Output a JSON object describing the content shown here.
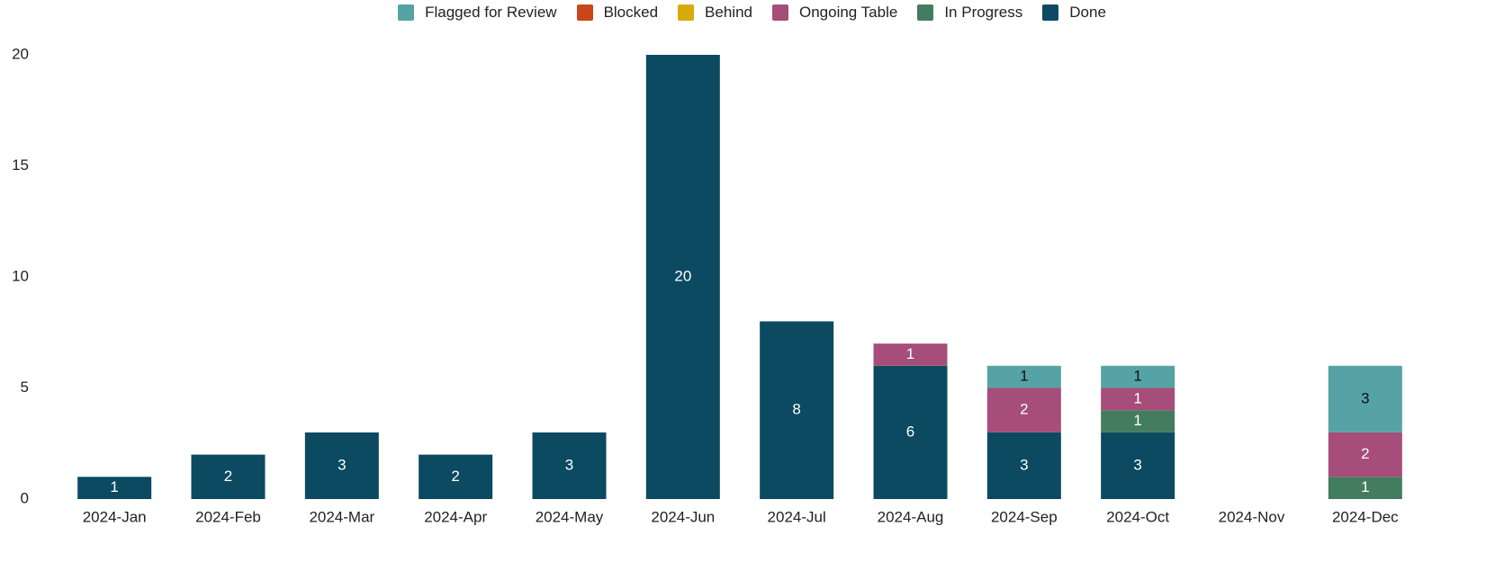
{
  "chart_data": {
    "type": "bar",
    "stacked": true,
    "categories": [
      "2024-Jan",
      "2024-Feb",
      "2024-Mar",
      "2024-Apr",
      "2024-May",
      "2024-Jun",
      "2024-Jul",
      "2024-Aug",
      "2024-Sep",
      "2024-Oct",
      "2024-Nov",
      "2024-Dec"
    ],
    "series": [
      {
        "name": "Flagged for Review",
        "color": "#56a3a6",
        "values": [
          0,
          0,
          0,
          0,
          0,
          0,
          0,
          0,
          1,
          1,
          0,
          3
        ]
      },
      {
        "name": "Blocked",
        "color": "#c9461a",
        "values": [
          0,
          0,
          0,
          0,
          0,
          0,
          0,
          0,
          0,
          0,
          0,
          0
        ]
      },
      {
        "name": "Behind",
        "color": "#d9aa0b",
        "values": [
          0,
          0,
          0,
          0,
          0,
          0,
          0,
          0,
          0,
          0,
          0,
          0
        ]
      },
      {
        "name": "Ongoing Table",
        "color": "#a64d79",
        "values": [
          0,
          0,
          0,
          0,
          0,
          0,
          0,
          1,
          2,
          1,
          0,
          2
        ]
      },
      {
        "name": "In Progress",
        "color": "#447c5f",
        "values": [
          0,
          0,
          0,
          0,
          0,
          0,
          0,
          0,
          0,
          1,
          0,
          1
        ]
      },
      {
        "name": "Done",
        "color": "#0b4a60",
        "values": [
          1,
          2,
          3,
          2,
          3,
          20,
          8,
          6,
          3,
          3,
          0,
          0
        ]
      }
    ],
    "ylim": [
      0,
      20
    ],
    "yticks": [
      0,
      5,
      10,
      15,
      20
    ],
    "grid": false,
    "legend": "top"
  }
}
